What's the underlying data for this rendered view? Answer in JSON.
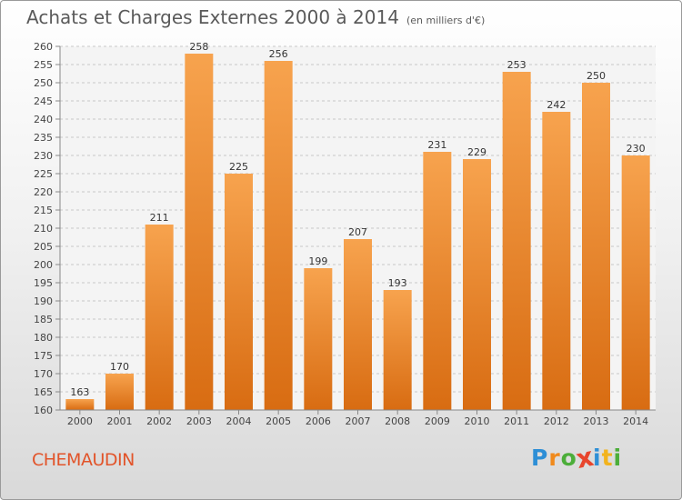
{
  "header": {
    "title": "Achats et Charges Externes 2000 à 2014",
    "subtitle": "(en milliers d'€)"
  },
  "footer": {
    "city": "CHEMAUDIN"
  },
  "logo": {
    "letters": [
      "P",
      "r",
      "o",
      "x",
      "i",
      "t",
      "i"
    ],
    "colors": [
      "#2e8fd6",
      "#f08a1c",
      "#4cae3a",
      "#e8452c",
      "#2e8fd6",
      "#f2b31d",
      "#4cae3a"
    ]
  },
  "chart_data": {
    "type": "bar",
    "categories": [
      "2000",
      "2001",
      "2002",
      "2003",
      "2004",
      "2005",
      "2006",
      "2007",
      "2008",
      "2009",
      "2010",
      "2011",
      "2012",
      "2013",
      "2014"
    ],
    "values": [
      163,
      170,
      211,
      258,
      225,
      256,
      199,
      207,
      193,
      231,
      229,
      253,
      242,
      250,
      230
    ],
    "value_labels": [
      "163",
      "170",
      "211",
      "258",
      "225",
      "256",
      "199",
      "207",
      "193",
      "231",
      "229",
      "253",
      "242",
      "250",
      "230"
    ],
    "yticks": [
      "160",
      "165",
      "170",
      "175",
      "180",
      "185",
      "190",
      "195",
      "200",
      "205",
      "210",
      "215",
      "220",
      "225",
      "230",
      "235",
      "240",
      "245",
      "250",
      "255",
      "260"
    ],
    "ylim": [
      160,
      260
    ],
    "grid": true,
    "bar_color_top": "#f7a34e",
    "bar_color_bottom": "#d86c12"
  }
}
